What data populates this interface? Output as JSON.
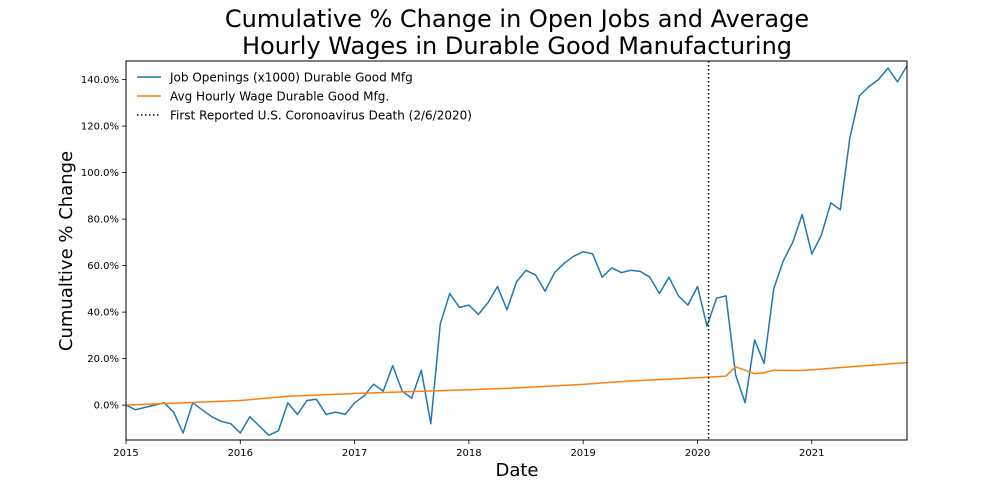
{
  "chart_data": {
    "type": "line",
    "title_lines": [
      "Cumulative % Change in Open Jobs and Average",
      "Hourly Wages in Durable Good Manufacturing"
    ],
    "xlabel": "Date",
    "ylabel": "Cumualtive % Change",
    "xlim": [
      "2015-01",
      "2021-11"
    ],
    "ylim": [
      -15,
      148
    ],
    "x_ticks": [
      {
        "date": "2015-01",
        "label": "2015"
      },
      {
        "date": "2016-01",
        "label": "2016"
      },
      {
        "date": "2017-01",
        "label": "2017"
      },
      {
        "date": "2018-01",
        "label": "2018"
      },
      {
        "date": "2019-01",
        "label": "2019"
      },
      {
        "date": "2020-01",
        "label": "2020"
      },
      {
        "date": "2021-01",
        "label": "2021"
      }
    ],
    "y_ticks": [
      {
        "value": 0,
        "label": "0.0%"
      },
      {
        "value": 20,
        "label": "20.0%"
      },
      {
        "value": 40,
        "label": "40.0%"
      },
      {
        "value": 60,
        "label": "60.0%"
      },
      {
        "value": 80,
        "label": "80.0%"
      },
      {
        "value": 100,
        "label": "100.0%"
      },
      {
        "value": 120,
        "label": "120.0%"
      },
      {
        "value": 140,
        "label": "140.0%"
      }
    ],
    "legend_position": "top-left",
    "grid": false,
    "series": [
      {
        "name": "Job Openings (x1000) Durable Good Mfg",
        "color": "#1f77b4",
        "points": [
          [
            "2015-01",
            0
          ],
          [
            "2015-02",
            -2
          ],
          [
            "2015-03",
            -1
          ],
          [
            "2015-04",
            0
          ],
          [
            "2015-05",
            1
          ],
          [
            "2015-06",
            -3
          ],
          [
            "2015-07",
            -12
          ],
          [
            "2015-08",
            1
          ],
          [
            "2015-09",
            -2
          ],
          [
            "2015-10",
            -5
          ],
          [
            "2015-11",
            -7
          ],
          [
            "2015-12",
            -8
          ],
          [
            "2016-01",
            -12
          ],
          [
            "2016-02",
            -5
          ],
          [
            "2016-03",
            -9
          ],
          [
            "2016-04",
            -13
          ],
          [
            "2016-05",
            -11
          ],
          [
            "2016-06",
            1
          ],
          [
            "2016-07",
            -4
          ],
          [
            "2016-08",
            2
          ],
          [
            "2016-09",
            2.5
          ],
          [
            "2016-10",
            -4
          ],
          [
            "2016-11",
            -3
          ],
          [
            "2016-12",
            -4
          ],
          [
            "2017-01",
            1
          ],
          [
            "2017-02",
            4
          ],
          [
            "2017-03",
            9
          ],
          [
            "2017-04",
            6
          ],
          [
            "2017-05",
            17
          ],
          [
            "2017-06",
            6
          ],
          [
            "2017-07",
            3
          ],
          [
            "2017-08",
            15
          ],
          [
            "2017-09",
            -8
          ],
          [
            "2017-10",
            35
          ],
          [
            "2017-11",
            48
          ],
          [
            "2017-12",
            42
          ],
          [
            "2018-01",
            43
          ],
          [
            "2018-02",
            39
          ],
          [
            "2018-03",
            44
          ],
          [
            "2018-04",
            51
          ],
          [
            "2018-05",
            41
          ],
          [
            "2018-06",
            53
          ],
          [
            "2018-07",
            58
          ],
          [
            "2018-08",
            56
          ],
          [
            "2018-09",
            49
          ],
          [
            "2018-10",
            57
          ],
          [
            "2018-11",
            61
          ],
          [
            "2018-12",
            64
          ],
          [
            "2019-01",
            66
          ],
          [
            "2019-02",
            65
          ],
          [
            "2019-03",
            55
          ],
          [
            "2019-04",
            59
          ],
          [
            "2019-05",
            57
          ],
          [
            "2019-06",
            58
          ],
          [
            "2019-07",
            57.5
          ],
          [
            "2019-08",
            55
          ],
          [
            "2019-09",
            48
          ],
          [
            "2019-10",
            55
          ],
          [
            "2019-11",
            47
          ],
          [
            "2019-12",
            43
          ],
          [
            "2020-01",
            51
          ],
          [
            "2020-02",
            34
          ],
          [
            "2020-03",
            46
          ],
          [
            "2020-04",
            47
          ],
          [
            "2020-05",
            13
          ],
          [
            "2020-06",
            1
          ],
          [
            "2020-07",
            28
          ],
          [
            "2020-08",
            18
          ],
          [
            "2020-09",
            50
          ],
          [
            "2020-10",
            62
          ],
          [
            "2020-11",
            70
          ],
          [
            "2020-12",
            82
          ],
          [
            "2021-01",
            65
          ],
          [
            "2021-02",
            73
          ],
          [
            "2021-03",
            87
          ],
          [
            "2021-04",
            84
          ],
          [
            "2021-05",
            115
          ],
          [
            "2021-06",
            133
          ],
          [
            "2021-07",
            137
          ],
          [
            "2021-08",
            140
          ],
          [
            "2021-09",
            145
          ],
          [
            "2021-10",
            139
          ],
          [
            "2021-11",
            146
          ],
          [
            "2021-12",
            146
          ],
          [
            "2022-01",
            146
          ]
        ]
      },
      {
        "name": "Avg Hourly Wage Durable Good Mfg.",
        "color": "#ff7f0e",
        "points": [
          [
            "2015-01",
            0
          ],
          [
            "2015-06",
            0.8
          ],
          [
            "2016-01",
            2
          ],
          [
            "2016-06",
            3.8
          ],
          [
            "2017-01",
            5
          ],
          [
            "2017-06",
            5.7
          ],
          [
            "2018-01",
            6.6
          ],
          [
            "2018-06",
            7.4
          ],
          [
            "2019-01",
            8.9
          ],
          [
            "2019-06",
            10.4
          ],
          [
            "2020-01",
            11.8
          ],
          [
            "2020-04",
            12.5
          ],
          [
            "2020-05",
            16.5
          ],
          [
            "2020-06",
            15
          ],
          [
            "2020-07",
            13.5
          ],
          [
            "2020-08",
            14
          ],
          [
            "2020-09",
            15
          ],
          [
            "2020-12",
            14.9
          ],
          [
            "2021-06",
            16.8
          ],
          [
            "2022-01",
            18.9
          ]
        ]
      },
      {
        "name": "First Reported U.S. Coronoavirus Death (2/6/2020)",
        "color": "#000000",
        "style": "dotted",
        "vertical_line_at": "2020-02-06"
      }
    ]
  }
}
